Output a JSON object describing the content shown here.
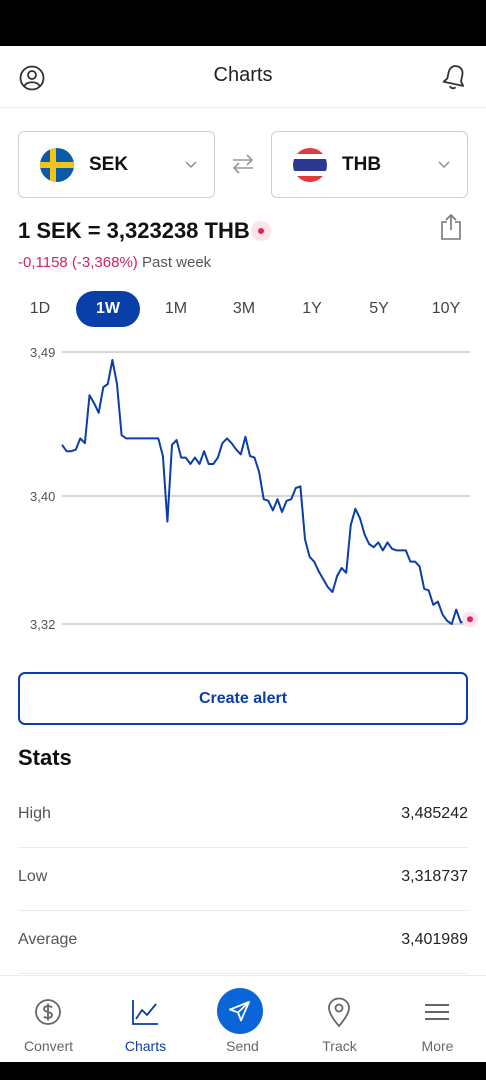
{
  "header": {
    "title": "Charts"
  },
  "pair": {
    "from": "SEK",
    "to": "THB"
  },
  "rate": {
    "text": "1 SEK = 3,323238 THB"
  },
  "change": {
    "value": "-0,1158 (-3,368%)",
    "period": "Past week"
  },
  "ranges": [
    "1D",
    "1W",
    "1M",
    "3M",
    "1Y",
    "5Y",
    "10Y"
  ],
  "active_range": "1W",
  "chart_data": {
    "type": "line",
    "ylim": [
      3.32,
      3.49
    ],
    "y_ticks": [
      "3,49",
      "3,40",
      "3,32"
    ],
    "grid": true,
    "series": [
      {
        "values": [
          3.432,
          3.428,
          3.428,
          3.429,
          3.436,
          3.433,
          3.463,
          3.458,
          3.452,
          3.468,
          3.47,
          3.485,
          3.47,
          3.438,
          3.436,
          3.436,
          3.436,
          3.436,
          3.436,
          3.436,
          3.436,
          3.436,
          3.425,
          3.384,
          3.432,
          3.435,
          3.424,
          3.424,
          3.42,
          3.424,
          3.42,
          3.428,
          3.42,
          3.42,
          3.424,
          3.433,
          3.436,
          3.433,
          3.429,
          3.426,
          3.437,
          3.425,
          3.424,
          3.415,
          3.398,
          3.397,
          3.391,
          3.398,
          3.39,
          3.397,
          3.398,
          3.405,
          3.406,
          3.373,
          3.362,
          3.359,
          3.353,
          3.348,
          3.343,
          3.34,
          3.35,
          3.355,
          3.352,
          3.382,
          3.392,
          3.386,
          3.376,
          3.37,
          3.368,
          3.371,
          3.366,
          3.371,
          3.367,
          3.366,
          3.366,
          3.366,
          3.359,
          3.359,
          3.356,
          3.342,
          3.341,
          3.332,
          3.334,
          3.326,
          3.322,
          3.32,
          3.329,
          3.321,
          3.322,
          3.323
        ]
      }
    ]
  },
  "alert_button": {
    "label": "Create alert"
  },
  "stats": {
    "title": "Stats",
    "rows": [
      {
        "label": "High",
        "value": "3,485242"
      },
      {
        "label": "Low",
        "value": "3,318737"
      },
      {
        "label": "Average",
        "value": "3,401989"
      }
    ]
  },
  "tabs": [
    {
      "label": "Convert",
      "icon": "dollar-coin-icon"
    },
    {
      "label": "Charts",
      "icon": "chart-line-icon"
    },
    {
      "label": "Send",
      "icon": "paper-plane-icon"
    },
    {
      "label": "Track",
      "icon": "map-pin-icon"
    },
    {
      "label": "More",
      "icon": "menu-icon"
    }
  ],
  "active_tab": "Charts",
  "colors": {
    "accent": "#0a3ea8",
    "send": "#0a65d8",
    "negative": "#d6245a"
  }
}
